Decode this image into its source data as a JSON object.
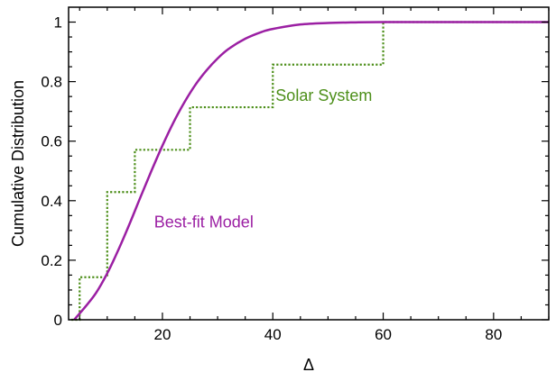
{
  "chart_data": {
    "type": "line",
    "xlabel": "Δ",
    "ylabel": "Cumulative Distribution",
    "xlim": [
      3,
      90
    ],
    "ylim": [
      0,
      1.05
    ],
    "x_ticks": [
      20,
      40,
      60,
      80
    ],
    "x_tick_labels": [
      "20",
      "40",
      "60",
      "80"
    ],
    "y_ticks": [
      0,
      0.2,
      0.4,
      0.6,
      0.8,
      1
    ],
    "y_tick_labels": [
      "0",
      "0.2",
      "0.4",
      "0.6",
      "0.8",
      "1"
    ],
    "grid": false,
    "series": [
      {
        "label": "Solar System",
        "kind": "step",
        "line_style": "dotted",
        "color": "#4d8f1a",
        "x": [
          3.5,
          5,
          10,
          15,
          25,
          40,
          60,
          90
        ],
        "y": [
          0,
          0.143,
          0.429,
          0.571,
          0.714,
          0.857,
          1.0,
          1.0
        ]
      },
      {
        "label": "Best-fit Model",
        "kind": "curve",
        "line_style": "solid",
        "color": "#9b1fa3",
        "x": [
          4,
          6,
          8,
          10,
          12,
          14,
          16,
          18,
          20,
          22,
          24,
          26,
          28,
          30,
          32,
          35,
          38,
          40,
          45,
          50,
          55,
          60,
          70,
          80,
          90
        ],
        "y": [
          0.0,
          0.043,
          0.091,
          0.156,
          0.234,
          0.32,
          0.411,
          0.5,
          0.585,
          0.663,
          0.731,
          0.79,
          0.838,
          0.878,
          0.91,
          0.944,
          0.967,
          0.977,
          0.992,
          0.997,
          0.999,
          1.0,
          1.0,
          1.0,
          1.0
        ]
      }
    ],
    "annotations": [
      {
        "text": "Solar System",
        "x": 40.5,
        "y": 0.735,
        "color": "#4d8f1a"
      },
      {
        "text": "Best-fit Model",
        "x": 18.5,
        "y": 0.31,
        "color": "#9b1fa3"
      }
    ]
  }
}
